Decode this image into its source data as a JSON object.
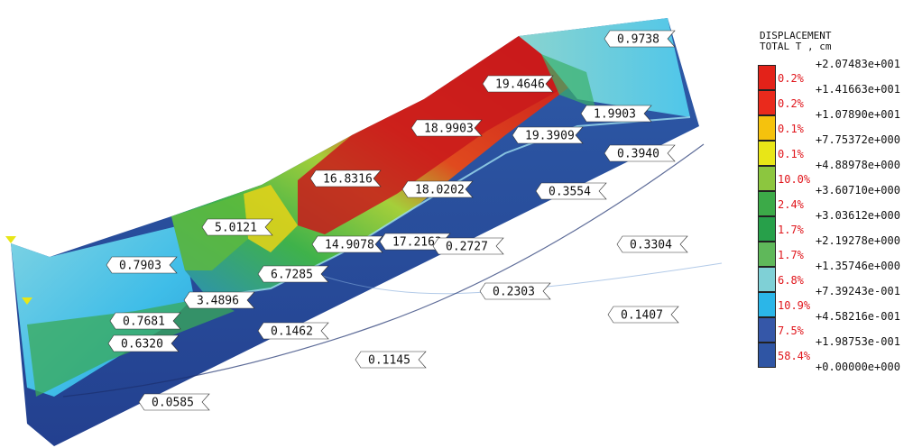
{
  "legend": {
    "title_line1": "DISPLACEMENT",
    "title_line2": "TOTAL T , cm",
    "boundaries": [
      "+2.07483e+001",
      "+1.41663e+001",
      "+1.07890e+001",
      "+7.75372e+000",
      "+4.88978e+000",
      "+3.60710e+000",
      "+3.03612e+000",
      "+2.19278e+000",
      "+1.35746e+000",
      "+7.39243e-001",
      "+4.58216e-001",
      "+1.98753e-001",
      "+0.00000e+000"
    ],
    "bands": [
      {
        "percent": "0.2%",
        "color": "#e32219"
      },
      {
        "percent": "0.2%",
        "color": "#ea2a1c"
      },
      {
        "percent": "0.1%",
        "color": "#f5c20d"
      },
      {
        "percent": "0.1%",
        "color": "#e8e617"
      },
      {
        "percent": "10.0%",
        "color": "#8cc63f"
      },
      {
        "percent": "2.4%",
        "color": "#3caa48"
      },
      {
        "percent": "1.7%",
        "color": "#27a04a"
      },
      {
        "percent": "1.7%",
        "color": "#5fb85a"
      },
      {
        "percent": "6.8%",
        "color": "#7fd0d6"
      },
      {
        "percent": "10.9%",
        "color": "#2bb6e8"
      },
      {
        "percent": "7.5%",
        "color": "#3557a8"
      },
      {
        "percent": "58.4%",
        "color": "#2f55a4"
      }
    ]
  },
  "labels": [
    {
      "text": "0.9738"
    },
    {
      "text": "19.4646"
    },
    {
      "text": "1.9903"
    },
    {
      "text": "18.9903"
    },
    {
      "text": "19.3909"
    },
    {
      "text": "0.3940"
    },
    {
      "text": "16.8316"
    },
    {
      "text": "18.0202"
    },
    {
      "text": "0.3554"
    },
    {
      "text": "5.0121"
    },
    {
      "text": "17.2163"
    },
    {
      "text": "0.3304"
    },
    {
      "text": "14.9078"
    },
    {
      "text": "0.2727"
    },
    {
      "text": "0.7903"
    },
    {
      "text": "6.7285"
    },
    {
      "text": "0.2303"
    },
    {
      "text": "3.4896"
    },
    {
      "text": "0.1407"
    },
    {
      "text": "0.7681"
    },
    {
      "text": "0.1462"
    },
    {
      "text": "0.6320"
    },
    {
      "text": "0.1145"
    },
    {
      "text": "0.0585"
    }
  ]
}
